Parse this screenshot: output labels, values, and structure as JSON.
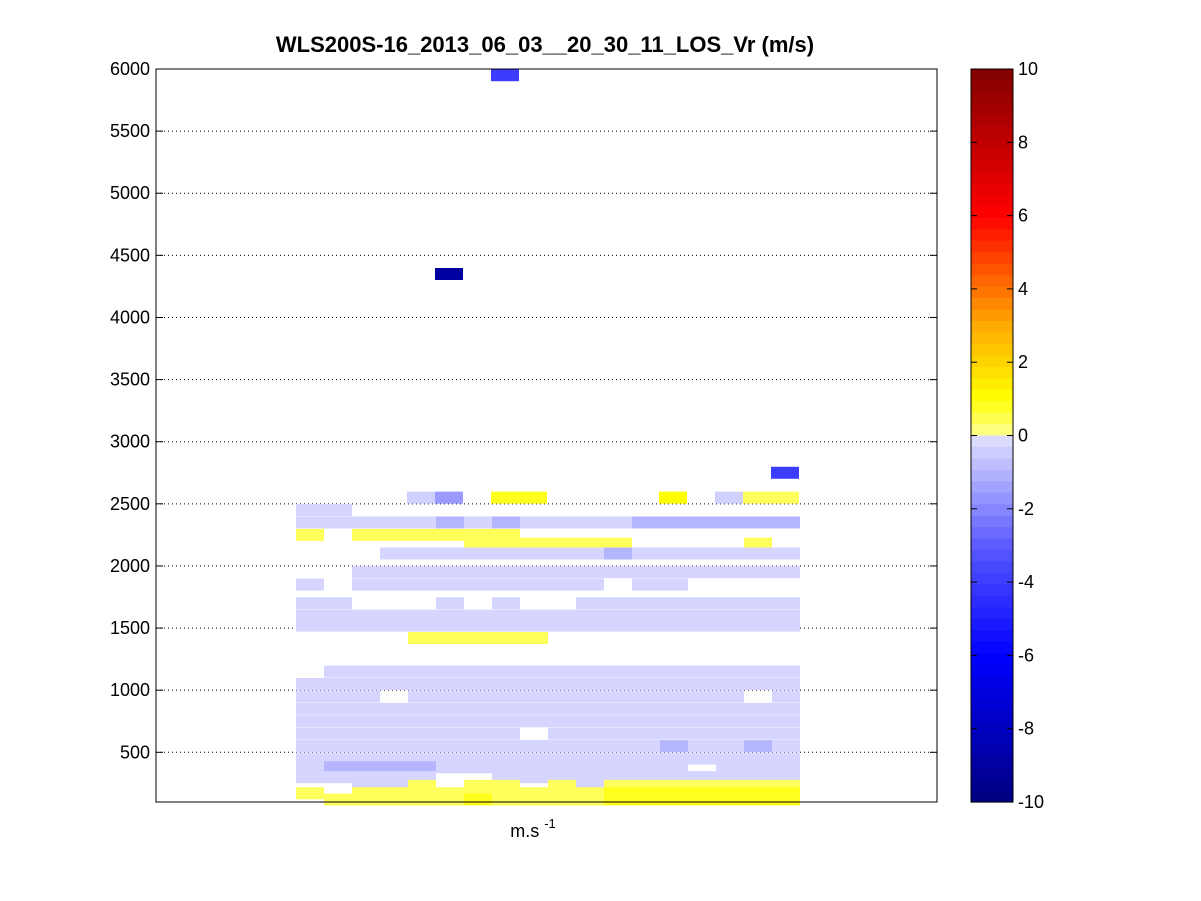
{
  "chart_data": {
    "type": "heatmap",
    "title": "WLS200S-16_2013_06_03__20_30_11_LOS_Vr (m/s)",
    "xlabel": "m.s",
    "xlabel_superscript": "-1",
    "ylabel": "",
    "ylim": [
      100,
      6000
    ],
    "yticks": [
      500,
      1000,
      1500,
      2000,
      2500,
      3000,
      3500,
      4000,
      4500,
      5000,
      5500,
      6000
    ],
    "ytick_labels": [
      "500",
      "1000",
      "1500",
      "2000",
      "2500",
      "3000",
      "3500",
      "4000",
      "4500",
      "5000",
      "5500",
      "6000"
    ],
    "grid": "y dotted",
    "colorbar": {
      "range": [
        -10,
        10
      ],
      "ticks": [
        -10,
        -8,
        -6,
        -4,
        -2,
        0,
        2,
        4,
        6,
        8,
        10
      ],
      "tick_labels": [
        "-10",
        "-8",
        "-6",
        "-4",
        "-2",
        "0",
        "2",
        "4",
        "6",
        "8",
        "10"
      ],
      "colormap": "blue-white-yellow-red",
      "steps": 64
    },
    "cells": [
      {
        "col": 7,
        "alt": 5950,
        "v": -4.0
      },
      {
        "col": 5,
        "alt": 4350,
        "v": -9.0
      },
      {
        "col": 17,
        "alt": 2750,
        "v": -4.0
      },
      {
        "col": 7,
        "alt": 2550,
        "v": 0.8
      },
      {
        "col": 8,
        "alt": 2550,
        "v": 0.8
      },
      {
        "col": 13,
        "alt": 2550,
        "v": 1.0
      },
      {
        "col": 4,
        "alt": 2550,
        "v": -0.4
      },
      {
        "col": 5,
        "alt": 2550,
        "v": -1.6
      },
      {
        "col": 15,
        "alt": 2550,
        "v": -0.4
      },
      {
        "col": 16,
        "alt": 2550,
        "v": 0.4
      },
      {
        "col": 17,
        "alt": 2550,
        "v": 0.4
      }
    ],
    "rows": [
      {
        "alt": 2450,
        "v": [
          -0.3,
          -0.3,
          null,
          null,
          null,
          null,
          null,
          null,
          null,
          null,
          null,
          null,
          null,
          null,
          null,
          null,
          null,
          null
        ]
      },
      {
        "alt": 2350,
        "v": [
          -0.3,
          -0.3,
          -0.3,
          -0.3,
          -0.3,
          -1.0,
          -0.3,
          -1.0,
          -0.3,
          -0.3,
          -0.3,
          -0.3,
          -1.0,
          -1.0,
          -1.0,
          -1.0,
          -1.0,
          -1.0
        ]
      },
      {
        "alt": 2250,
        "v": [
          0.4,
          null,
          0.4,
          0.4,
          0.4,
          0.4,
          0.4,
          0.4,
          null,
          null,
          null,
          null,
          null,
          null,
          null,
          null,
          null,
          null
        ]
      },
      {
        "alt": 2180,
        "v": [
          null,
          null,
          null,
          null,
          null,
          null,
          0.4,
          0.4,
          0.4,
          0.4,
          0.4,
          0.4,
          null,
          null,
          null,
          null,
          0.4,
          null
        ]
      },
      {
        "alt": 2100,
        "v": [
          null,
          null,
          null,
          -0.3,
          -0.3,
          -0.3,
          -0.3,
          -0.3,
          -0.3,
          -0.3,
          -0.3,
          -1.0,
          -0.3,
          -0.3,
          -0.3,
          -0.3,
          -0.3,
          -0.3
        ]
      },
      {
        "alt": 1950,
        "v": [
          null,
          null,
          -0.3,
          -0.3,
          -0.3,
          -0.3,
          -0.3,
          -0.3,
          -0.3,
          -0.3,
          -0.3,
          -0.3,
          -0.3,
          -0.3,
          -0.3,
          -0.3,
          -0.3,
          -0.3
        ]
      },
      {
        "alt": 1850,
        "v": [
          -0.3,
          null,
          -0.3,
          -0.3,
          -0.3,
          -0.3,
          -0.3,
          -0.3,
          -0.3,
          -0.3,
          -0.3,
          null,
          -0.3,
          -0.3,
          null,
          null,
          null,
          null
        ]
      },
      {
        "alt": 1700,
        "v": [
          -0.3,
          -0.3,
          null,
          null,
          null,
          -0.3,
          null,
          -0.3,
          null,
          null,
          -0.3,
          -0.3,
          -0.3,
          -0.3,
          -0.3,
          -0.3,
          -0.3,
          -0.3
        ]
      },
      {
        "alt": 1600,
        "v": [
          -0.3,
          -0.3,
          -0.3,
          -0.3,
          -0.3,
          -0.3,
          -0.3,
          -0.3,
          -0.3,
          -0.3,
          -0.3,
          -0.3,
          -0.3,
          -0.3,
          -0.3,
          -0.3,
          -0.3,
          -0.3
        ]
      },
      {
        "alt": 1520,
        "v": [
          -0.3,
          -0.3,
          -0.3,
          -0.3,
          -0.3,
          -0.3,
          -0.3,
          -0.3,
          -0.3,
          -0.3,
          -0.3,
          -0.3,
          -0.3,
          -0.3,
          -0.3,
          -0.3,
          -0.3,
          -0.3
        ]
      },
      {
        "alt": 1420,
        "v": [
          null,
          null,
          null,
          null,
          0.4,
          0.4,
          0.4,
          0.4,
          0.4,
          null,
          null,
          null,
          null,
          null,
          null,
          null,
          null,
          null
        ]
      },
      {
        "alt": 1150,
        "v": [
          null,
          -0.3,
          -0.3,
          -0.3,
          -0.3,
          -0.3,
          -0.3,
          -0.3,
          -0.3,
          -0.3,
          -0.3,
          -0.3,
          -0.3,
          -0.3,
          -0.3,
          -0.3,
          -0.3,
          -0.3
        ]
      },
      {
        "alt": 1050,
        "v": [
          -0.3,
          -0.3,
          -0.3,
          -0.3,
          -0.3,
          -0.3,
          -0.3,
          -0.3,
          -0.3,
          -0.3,
          -0.3,
          -0.3,
          -0.3,
          -0.3,
          -0.3,
          -0.3,
          -0.3,
          -0.3
        ]
      },
      {
        "alt": 950,
        "v": [
          -0.3,
          -0.3,
          -0.3,
          null,
          -0.3,
          -0.3,
          -0.3,
          -0.3,
          -0.3,
          -0.3,
          -0.3,
          -0.3,
          -0.3,
          -0.3,
          -0.3,
          -0.3,
          null,
          -0.3
        ]
      },
      {
        "alt": 850,
        "v": [
          -0.3,
          -0.3,
          -0.3,
          -0.3,
          -0.3,
          -0.3,
          -0.3,
          -0.3,
          -0.3,
          -0.3,
          -0.3,
          -0.3,
          -0.3,
          -0.3,
          -0.3,
          -0.3,
          -0.3,
          -0.3
        ]
      },
      {
        "alt": 750,
        "v": [
          -0.3,
          -0.3,
          -0.3,
          -0.3,
          -0.3,
          -0.3,
          -0.3,
          -0.3,
          -0.3,
          -0.3,
          -0.3,
          -0.3,
          -0.3,
          -0.3,
          -0.3,
          -0.3,
          -0.3,
          -0.3
        ]
      },
      {
        "alt": 650,
        "v": [
          -0.3,
          -0.3,
          -0.3,
          -0.3,
          -0.3,
          -0.3,
          -0.3,
          -0.3,
          null,
          -0.3,
          -0.3,
          -0.3,
          -0.3,
          -0.3,
          -0.3,
          -0.3,
          -0.3,
          -0.3
        ]
      },
      {
        "alt": 550,
        "v": [
          -0.3,
          -0.3,
          -0.3,
          -0.3,
          -0.3,
          -0.3,
          -0.3,
          -0.3,
          -0.3,
          -0.3,
          -0.3,
          -0.3,
          -0.3,
          -1.0,
          -0.3,
          -0.3,
          -1.0,
          -0.3
        ]
      },
      {
        "alt": 450,
        "v": [
          -0.3,
          -0.3,
          -0.3,
          -0.3,
          -0.3,
          -0.3,
          -0.3,
          -0.3,
          -0.3,
          -0.3,
          -0.3,
          -0.3,
          -0.3,
          -0.3,
          -0.3,
          -0.3,
          -0.3,
          -0.3
        ]
      },
      {
        "alt": 380,
        "v": [
          -0.3,
          -1.0,
          -1.0,
          -1.0,
          -1.0,
          -0.3,
          -0.3,
          -0.3,
          -0.3,
          -0.3,
          -0.3,
          -0.3,
          -0.3,
          -0.3,
          null,
          -0.3,
          -0.3,
          -0.3
        ]
      },
      {
        "alt": 300,
        "v": [
          -0.3,
          -0.3,
          -0.3,
          -0.3,
          -0.3,
          null,
          null,
          -0.3,
          -0.3,
          -0.3,
          -0.3,
          -0.3,
          -0.3,
          -0.3,
          -0.3,
          -0.3,
          -0.3,
          -0.3
        ]
      },
      {
        "alt": 230,
        "v": [
          null,
          null,
          -0.3,
          -0.3,
          0.4,
          null,
          0.4,
          0.4,
          null,
          0.4,
          -0.3,
          0.4,
          0.4,
          0.4,
          0.4,
          0.4,
          0.4,
          0.4
        ]
      },
      {
        "alt": 170,
        "v": [
          0.4,
          null,
          0.4,
          0.4,
          0.4,
          0.4,
          0.4,
          0.4,
          0.4,
          0.4,
          0.4,
          0.8,
          0.8,
          0.8,
          0.8,
          0.8,
          0.8,
          0.8
        ]
      },
      {
        "alt": 120,
        "v": [
          null,
          0.4,
          0.4,
          0.4,
          0.4,
          0.4,
          0.8,
          0.4,
          0.4,
          0.4,
          0.4,
          0.8,
          0.8,
          0.8,
          0.8,
          0.8,
          0.8,
          0.8
        ]
      }
    ]
  }
}
